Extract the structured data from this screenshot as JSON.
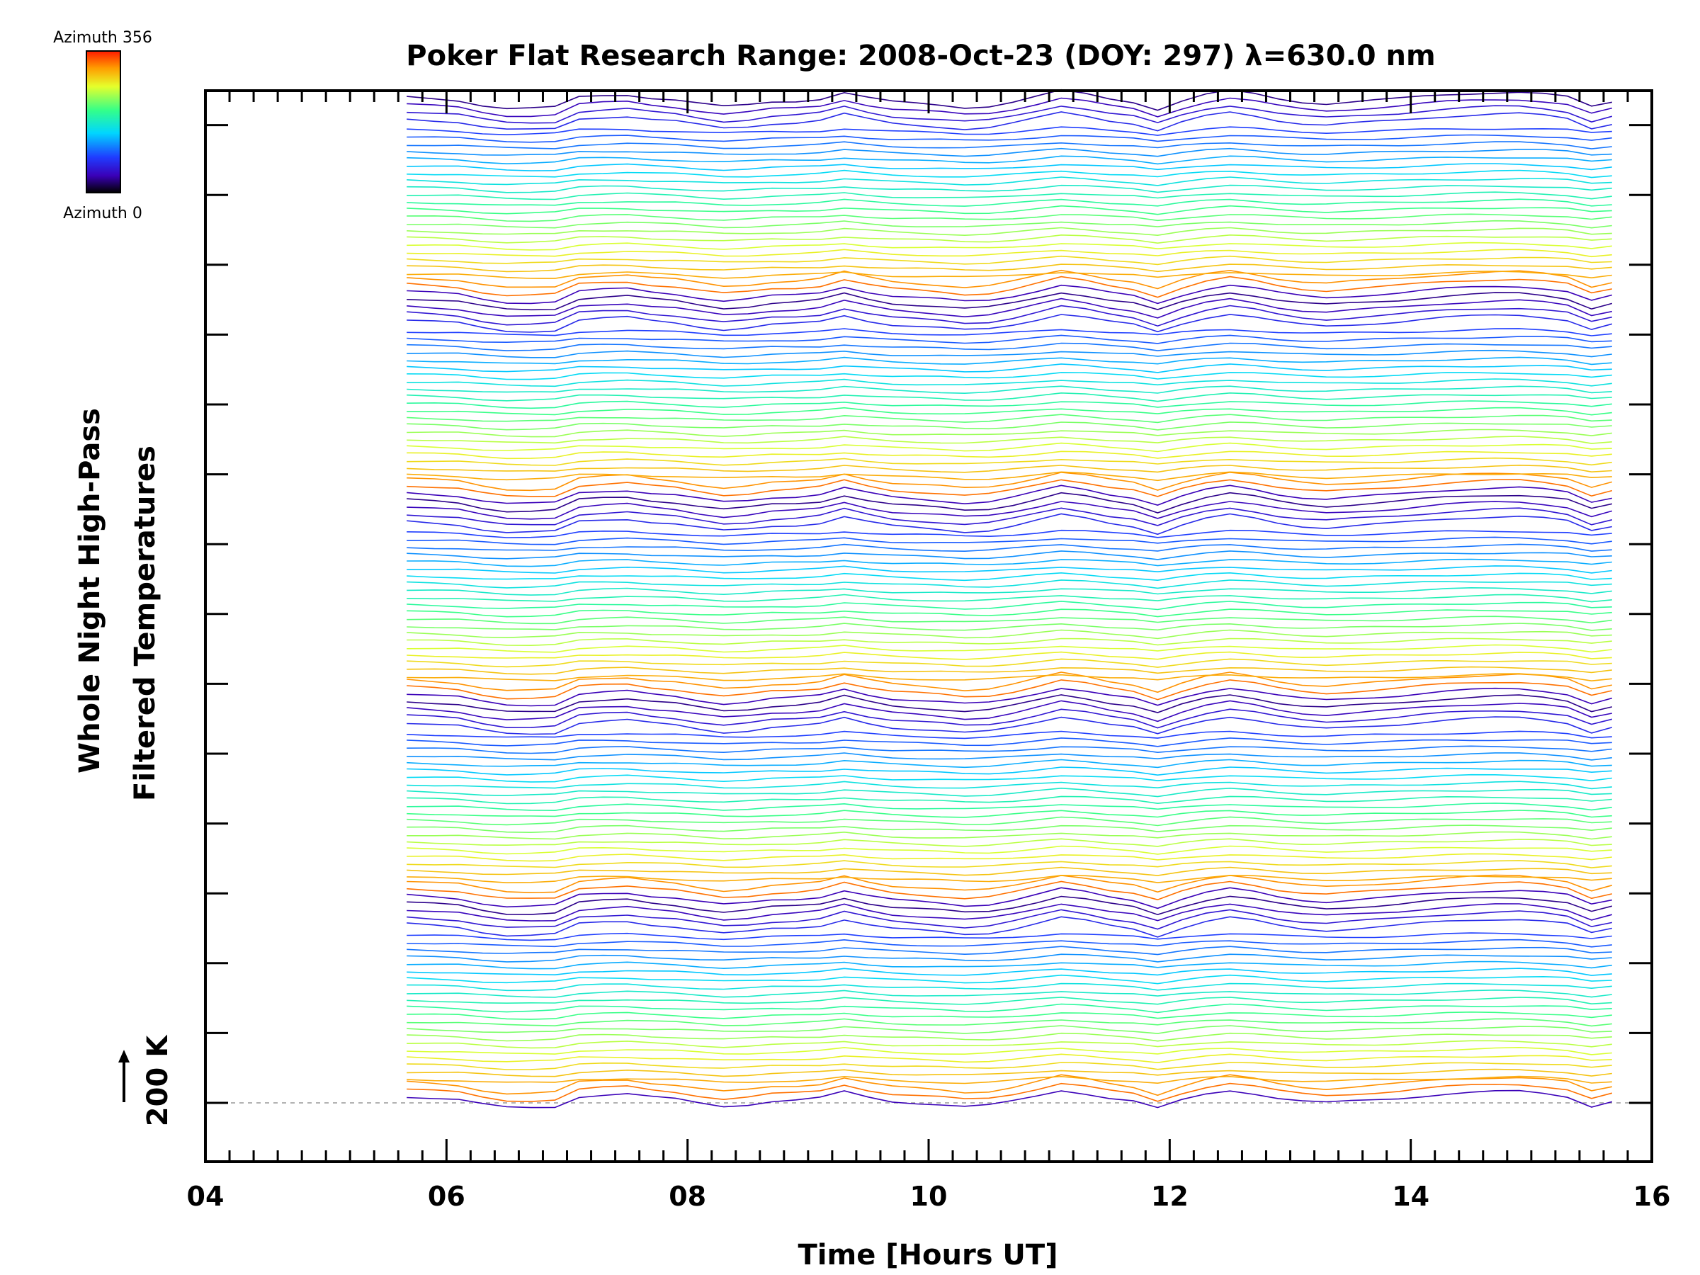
{
  "chart_data": {
    "type": "line",
    "title": "Poker Flat Research Range: 2008-Oct-23 (DOY: 297) λ=630.0 nm",
    "xlabel": "Time [Hours UT]",
    "ylabel_line1": "Whole Night High-Pass",
    "ylabel_line2": "Filtered Temperatures",
    "scale_bar_label": "200 K",
    "xlim": [
      4,
      16
    ],
    "x_ticks": [
      "04",
      "06",
      "08",
      "10",
      "12",
      "14",
      "16"
    ],
    "colorbar": {
      "top_label": "Azimuth 356",
      "bottom_label": "Azimuth 0"
    },
    "time_start": 5.67,
    "time_end": 15.67,
    "series_count": 140,
    "series_spacing_K": 40,
    "times": [
      5.67,
      5.9,
      6.1,
      6.3,
      6.5,
      6.7,
      6.9,
      7.1,
      7.3,
      7.5,
      7.7,
      7.9,
      8.1,
      8.3,
      8.5,
      8.7,
      8.9,
      9.1,
      9.3,
      9.5,
      9.7,
      9.9,
      10.1,
      10.3,
      10.5,
      10.7,
      10.9,
      11.1,
      11.3,
      11.5,
      11.7,
      11.9,
      12.1,
      12.3,
      12.5,
      12.7,
      12.9,
      13.1,
      13.3,
      13.5,
      13.7,
      13.9,
      14.1,
      14.3,
      14.5,
      14.7,
      14.9,
      15.1,
      15.3,
      15.5,
      15.67
    ],
    "base_profile_K": [
      20,
      15,
      10,
      -5,
      -15,
      -15,
      -12,
      20,
      25,
      28,
      18,
      12,
      0,
      -10,
      -5,
      5,
      8,
      15,
      35,
      18,
      5,
      0,
      -5,
      -12,
      -8,
      5,
      22,
      40,
      30,
      15,
      5,
      -18,
      8,
      28,
      40,
      30,
      15,
      5,
      0,
      5,
      10,
      15,
      22,
      28,
      32,
      35,
      36,
      30,
      20,
      -10,
      5
    ],
    "colors": {
      "axis": "#000000",
      "baseline": "#999999"
    }
  }
}
